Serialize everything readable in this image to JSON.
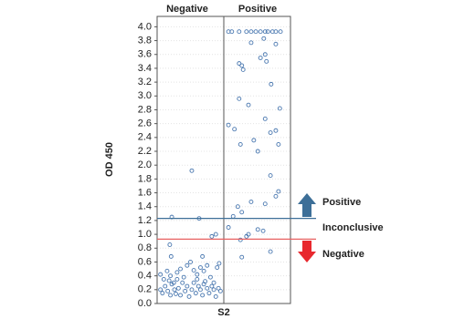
{
  "chart_data": {
    "type": "scatter",
    "x_label": "S2",
    "y_label": "OD 450",
    "categories": [
      "Negative",
      "Positive"
    ],
    "xlim": [
      0,
      2
    ],
    "ylim": [
      0,
      4.15
    ],
    "yticks": [
      {
        "value": 0,
        "label": "0.0"
      },
      0.2,
      0.4,
      0.6,
      0.8,
      {
        "value": 1,
        "label": "1.0"
      },
      1.2,
      1.4,
      1.6,
      1.8,
      {
        "value": 2,
        "label": "2.0"
      },
      2.2,
      2.4,
      2.6,
      2.8,
      {
        "value": 3,
        "label": "3.0"
      },
      3.2,
      3.4,
      3.6,
      3.8,
      {
        "value": 4,
        "label": "4.0"
      }
    ],
    "grid": true,
    "color": "#4a78b0",
    "x": [
      0.52,
      0.22,
      0.63,
      0.82,
      0.88,
      0.19,
      0.21,
      0.68,
      0.05,
      0.1,
      0.15,
      0.2,
      0.25,
      0.3,
      0.35,
      0.4,
      0.45,
      0.5,
      0.55,
      0.6,
      0.65,
      0.7,
      0.75,
      0.8,
      0.85,
      0.9,
      0.93,
      0.05,
      0.08,
      0.12,
      0.16,
      0.2,
      0.22,
      0.26,
      0.28,
      0.32,
      0.35,
      0.38,
      0.42,
      0.45,
      0.48,
      0.52,
      0.55,
      0.58,
      0.62,
      0.65,
      0.68,
      0.72,
      0.75,
      0.78,
      0.82,
      0.85,
      0.88,
      0.92,
      0.95,
      0.18,
      0.3,
      0.6,
      0.7,
      1.07,
      1.12,
      1.23,
      1.34,
      1.41,
      1.48,
      1.55,
      1.62,
      1.66,
      1.73,
      1.78,
      1.85,
      1.6,
      1.41,
      1.78,
      1.62,
      1.55,
      1.23,
      1.27,
      1.29,
      1.64,
      1.71,
      1.23,
      1.37,
      1.84,
      1.62,
      1.07,
      1.16,
      1.78,
      1.7,
      1.45,
      1.25,
      1.82,
      1.51,
      1.7,
      1.82,
      1.78,
      1.41,
      1.62,
      1.21,
      1.27,
      1.14,
      1.07,
      1.51,
      1.59,
      1.37,
      1.34,
      1.25,
      1.7,
      1.27
    ],
    "values": [
      1.92,
      1.25,
      1.23,
      0.97,
      1.0,
      0.85,
      0.68,
      0.68,
      0.42,
      0.35,
      0.47,
      0.4,
      0.3,
      0.45,
      0.5,
      0.38,
      0.55,
      0.6,
      0.48,
      0.42,
      0.52,
      0.47,
      0.55,
      0.38,
      0.3,
      0.52,
      0.58,
      0.2,
      0.15,
      0.25,
      0.18,
      0.12,
      0.28,
      0.2,
      0.14,
      0.22,
      0.12,
      0.3,
      0.18,
      0.25,
      0.1,
      0.2,
      0.3,
      0.15,
      0.25,
      0.2,
      0.12,
      0.32,
      0.22,
      0.15,
      0.25,
      0.2,
      0.1,
      0.22,
      0.18,
      0.33,
      0.35,
      0.35,
      0.28,
      3.93,
      3.93,
      3.93,
      3.93,
      3.93,
      3.93,
      3.93,
      3.93,
      3.93,
      3.93,
      3.93,
      3.93,
      3.83,
      3.77,
      3.75,
      3.6,
      3.55,
      3.47,
      3.44,
      3.38,
      3.5,
      3.17,
      2.96,
      2.87,
      2.82,
      2.67,
      2.58,
      2.52,
      2.5,
      2.47,
      2.36,
      2.3,
      2.3,
      2.2,
      1.85,
      1.62,
      1.55,
      1.47,
      1.44,
      1.4,
      1.32,
      1.26,
      1.1,
      1.07,
      1.05,
      1.0,
      0.97,
      0.92,
      0.75,
      0.67
    ],
    "reference_lines": [
      {
        "value": 1.23,
        "color": "#3d6f98"
      },
      {
        "value": 0.93,
        "color": "#e86060"
      }
    ],
    "annotations": [
      "Positive",
      "Inconclusive",
      "Negative"
    ]
  }
}
